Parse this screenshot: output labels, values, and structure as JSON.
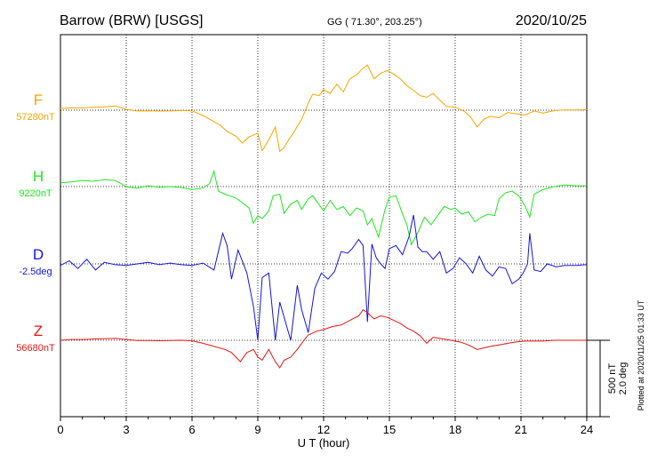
{
  "header": {
    "station": "Barrow (BRW)  [USGS]",
    "coords": "GG ( 71.30°, 203.25°)",
    "date": "2020/10/25"
  },
  "plotted_note": "Plotted at 2020/11/25 01:33 UT",
  "scale": {
    "nt": "500 nT",
    "deg": "2.0 deg"
  },
  "chart_data": {
    "type": "line",
    "xlabel": "U T (hour)",
    "xlim": [
      0,
      24
    ],
    "xticks": [
      0,
      3,
      6,
      9,
      12,
      15,
      18,
      21,
      24
    ],
    "xtick_labels": [
      "0",
      "3",
      "6",
      "9",
      "12",
      "15",
      "18",
      "21",
      "24"
    ],
    "grid": true,
    "y_units": "nT offset from baseline (D in deg, 2.0 deg = 500 nT on the scale bar)",
    "series": [
      {
        "name": "F",
        "baseline": "57280nT",
        "color": "#f5a500",
        "points": [
          [
            0,
            10
          ],
          [
            0.5,
            15
          ],
          [
            1,
            14
          ],
          [
            1.5,
            20
          ],
          [
            2,
            22
          ],
          [
            2.5,
            28
          ],
          [
            3,
            5
          ],
          [
            3.5,
            -5
          ],
          [
            4,
            -4
          ],
          [
            4.5,
            -6
          ],
          [
            5,
            -5
          ],
          [
            5.5,
            -2
          ],
          [
            6,
            -4
          ],
          [
            6.5,
            -35
          ],
          [
            7,
            -75
          ],
          [
            7.3,
            -100
          ],
          [
            7.6,
            -140
          ],
          [
            8,
            -170
          ],
          [
            8.3,
            -215
          ],
          [
            8.6,
            -175
          ],
          [
            9,
            -150
          ],
          [
            9.2,
            -265
          ],
          [
            9.5,
            -195
          ],
          [
            9.8,
            -110
          ],
          [
            10,
            -270
          ],
          [
            10.2,
            -245
          ],
          [
            10.4,
            -195
          ],
          [
            10.6,
            -155
          ],
          [
            10.8,
            -105
          ],
          [
            11,
            -60
          ],
          [
            11.3,
            45
          ],
          [
            11.5,
            105
          ],
          [
            11.8,
            95
          ],
          [
            12,
            135
          ],
          [
            12.3,
            110
          ],
          [
            12.6,
            170
          ],
          [
            12.9,
            120
          ],
          [
            13.2,
            205
          ],
          [
            13.5,
            230
          ],
          [
            13.8,
            275
          ],
          [
            14,
            295
          ],
          [
            14.3,
            205
          ],
          [
            14.6,
            240
          ],
          [
            14.9,
            260
          ],
          [
            15.2,
            235
          ],
          [
            15.5,
            205
          ],
          [
            15.8,
            160
          ],
          [
            16.1,
            130
          ],
          [
            16.4,
            95
          ],
          [
            16.7,
            85
          ],
          [
            17,
            110
          ],
          [
            17.3,
            65
          ],
          [
            17.6,
            25
          ],
          [
            18,
            20
          ],
          [
            18.4,
            -5
          ],
          [
            18.7,
            -45
          ],
          [
            19,
            -110
          ],
          [
            19.3,
            -60
          ],
          [
            19.6,
            -40
          ],
          [
            20,
            -50
          ],
          [
            20.4,
            -15
          ],
          [
            20.8,
            -25
          ],
          [
            21.2,
            -30
          ],
          [
            21.6,
            -5
          ],
          [
            22,
            -20
          ],
          [
            22.5,
            -3
          ],
          [
            23,
            2
          ],
          [
            23.5,
            2
          ],
          [
            24,
            3
          ]
        ]
      },
      {
        "name": "H",
        "baseline": "9220nT",
        "color": "#1ee61e",
        "points": [
          [
            0,
            25
          ],
          [
            0.5,
            30
          ],
          [
            1,
            40
          ],
          [
            1.5,
            35
          ],
          [
            2,
            45
          ],
          [
            2.5,
            40
          ],
          [
            3,
            0
          ],
          [
            3.5,
            -10
          ],
          [
            4,
            5
          ],
          [
            4.5,
            -5
          ],
          [
            5,
            0
          ],
          [
            5.5,
            -5
          ],
          [
            6,
            -20
          ],
          [
            6.5,
            -10
          ],
          [
            6.8,
            20
          ],
          [
            7,
            100
          ],
          [
            7.2,
            -30
          ],
          [
            7.5,
            -50
          ],
          [
            7.7,
            -60
          ],
          [
            8,
            -75
          ],
          [
            8.3,
            -105
          ],
          [
            8.6,
            -140
          ],
          [
            8.8,
            -240
          ],
          [
            9,
            -190
          ],
          [
            9.2,
            -210
          ],
          [
            9.5,
            -160
          ],
          [
            9.7,
            -60
          ],
          [
            10,
            -50
          ],
          [
            10.2,
            -175
          ],
          [
            10.5,
            -115
          ],
          [
            10.8,
            -90
          ],
          [
            11,
            -150
          ],
          [
            11.3,
            -80
          ],
          [
            11.5,
            -60
          ],
          [
            11.8,
            -120
          ],
          [
            12,
            -160
          ],
          [
            12.3,
            -90
          ],
          [
            12.6,
            -150
          ],
          [
            12.9,
            -130
          ],
          [
            13.2,
            -190
          ],
          [
            13.5,
            -140
          ],
          [
            13.8,
            -160
          ],
          [
            14,
            -250
          ],
          [
            14.2,
            -210
          ],
          [
            14.5,
            -330
          ],
          [
            14.8,
            -150
          ],
          [
            15,
            -70
          ],
          [
            15.3,
            -60
          ],
          [
            15.6,
            -180
          ],
          [
            15.8,
            -250
          ],
          [
            16,
            -380
          ],
          [
            16.3,
            -300
          ],
          [
            16.6,
            -200
          ],
          [
            16.9,
            -250
          ],
          [
            17.2,
            -190
          ],
          [
            17.5,
            -130
          ],
          [
            17.8,
            -150
          ],
          [
            18,
            -140
          ],
          [
            18.3,
            -180
          ],
          [
            18.6,
            -165
          ],
          [
            18.9,
            -230
          ],
          [
            19.2,
            -200
          ],
          [
            19.5,
            -180
          ],
          [
            19.8,
            -190
          ],
          [
            20,
            -80
          ],
          [
            20.3,
            -40
          ],
          [
            20.6,
            -30
          ],
          [
            20.9,
            -60
          ],
          [
            21.2,
            -130
          ],
          [
            21.4,
            -200
          ],
          [
            21.6,
            -50
          ],
          [
            22,
            -20
          ],
          [
            22.5,
            0
          ],
          [
            23,
            10
          ],
          [
            23.5,
            5
          ],
          [
            24,
            5
          ]
        ]
      },
      {
        "name": "D",
        "baseline": "-2.5deg",
        "color": "#1414dc",
        "points": [
          [
            0,
            -10
          ],
          [
            0.4,
            20
          ],
          [
            0.8,
            -30
          ],
          [
            1.2,
            30
          ],
          [
            1.6,
            -40
          ],
          [
            2,
            10
          ],
          [
            2.5,
            -5
          ],
          [
            3,
            -10
          ],
          [
            3.5,
            0
          ],
          [
            4,
            10
          ],
          [
            4.5,
            -5
          ],
          [
            5,
            5
          ],
          [
            5.5,
            -5
          ],
          [
            6,
            -10
          ],
          [
            6.5,
            5
          ],
          [
            7,
            -40
          ],
          [
            7.4,
            200
          ],
          [
            7.6,
            120
          ],
          [
            7.8,
            -100
          ],
          [
            8.1,
            90
          ],
          [
            8.5,
            -60
          ],
          [
            8.8,
            -280
          ],
          [
            9,
            -500
          ],
          [
            9.2,
            -90
          ],
          [
            9.5,
            -60
          ],
          [
            9.8,
            -500
          ],
          [
            10,
            -250
          ],
          [
            10.2,
            -350
          ],
          [
            10.5,
            -500
          ],
          [
            10.8,
            -140
          ],
          [
            11,
            -300
          ],
          [
            11.3,
            -450
          ],
          [
            11.6,
            -160
          ],
          [
            11.9,
            -60
          ],
          [
            12.2,
            -100
          ],
          [
            12.5,
            -50
          ],
          [
            12.8,
            80
          ],
          [
            13.1,
            70
          ],
          [
            13.3,
            100
          ],
          [
            13.6,
            160
          ],
          [
            13.8,
            120
          ],
          [
            14,
            -380
          ],
          [
            14.2,
            130
          ],
          [
            14.4,
            40
          ],
          [
            14.6,
            0
          ],
          [
            14.8,
            -30
          ],
          [
            15,
            100
          ],
          [
            15.3,
            120
          ],
          [
            15.6,
            60
          ],
          [
            15.9,
            180
          ],
          [
            16.1,
            320
          ],
          [
            16.3,
            110
          ],
          [
            16.5,
            80
          ],
          [
            16.7,
            80
          ],
          [
            17,
            30
          ],
          [
            17.3,
            80
          ],
          [
            17.6,
            -60
          ],
          [
            17.9,
            -30
          ],
          [
            18.2,
            40
          ],
          [
            18.5,
            0
          ],
          [
            18.8,
            -60
          ],
          [
            19.1,
            50
          ],
          [
            19.4,
            -40
          ],
          [
            19.7,
            -80
          ],
          [
            20,
            -20
          ],
          [
            20.3,
            -30
          ],
          [
            20.6,
            -130
          ],
          [
            20.9,
            -100
          ],
          [
            21.1,
            -60
          ],
          [
            21.3,
            0
          ],
          [
            21.4,
            200
          ],
          [
            21.6,
            -40
          ],
          [
            21.9,
            -50
          ],
          [
            22.2,
            0
          ],
          [
            22.6,
            -20
          ],
          [
            23,
            -10
          ],
          [
            23.5,
            -10
          ],
          [
            24,
            -5
          ]
        ]
      },
      {
        "name": "Z",
        "baseline": "56680nT",
        "color": "#e61414",
        "points": [
          [
            0,
            0
          ],
          [
            0.5,
            5
          ],
          [
            1,
            5
          ],
          [
            1.5,
            8
          ],
          [
            2,
            10
          ],
          [
            2.5,
            12
          ],
          [
            3,
            5
          ],
          [
            3.5,
            -2
          ],
          [
            4,
            -2
          ],
          [
            4.5,
            -3
          ],
          [
            5,
            -2
          ],
          [
            5.5,
            0
          ],
          [
            6,
            -3
          ],
          [
            6.5,
            -20
          ],
          [
            7,
            -40
          ],
          [
            7.5,
            -60
          ],
          [
            7.8,
            -80
          ],
          [
            8,
            -110
          ],
          [
            8.2,
            -140
          ],
          [
            8.5,
            -80
          ],
          [
            8.8,
            -60
          ],
          [
            9,
            -110
          ],
          [
            9.2,
            -130
          ],
          [
            9.5,
            -60
          ],
          [
            9.8,
            -140
          ],
          [
            10,
            -180
          ],
          [
            10.2,
            -130
          ],
          [
            10.5,
            -110
          ],
          [
            10.8,
            -60
          ],
          [
            11,
            -20
          ],
          [
            11.3,
            35
          ],
          [
            11.7,
            60
          ],
          [
            12,
            70
          ],
          [
            12.4,
            90
          ],
          [
            12.8,
            100
          ],
          [
            13.2,
            130
          ],
          [
            13.6,
            160
          ],
          [
            13.8,
            200
          ],
          [
            14,
            180
          ],
          [
            14.3,
            140
          ],
          [
            14.6,
            160
          ],
          [
            14.9,
            150
          ],
          [
            15.2,
            130
          ],
          [
            15.5,
            110
          ],
          [
            15.8,
            80
          ],
          [
            16.1,
            60
          ],
          [
            16.4,
            30
          ],
          [
            16.7,
            -20
          ],
          [
            17,
            20
          ],
          [
            17.4,
            10
          ],
          [
            17.8,
            0
          ],
          [
            18.2,
            -10
          ],
          [
            18.6,
            -30
          ],
          [
            19,
            -60
          ],
          [
            19.3,
            -50
          ],
          [
            19.6,
            -40
          ],
          [
            20,
            -30
          ],
          [
            20.4,
            -20
          ],
          [
            20.8,
            -10
          ],
          [
            21.2,
            -5
          ],
          [
            21.6,
            -5
          ],
          [
            22,
            -5
          ],
          [
            22.5,
            0
          ],
          [
            23,
            0
          ],
          [
            23.5,
            0
          ],
          [
            24,
            0
          ]
        ]
      }
    ]
  }
}
